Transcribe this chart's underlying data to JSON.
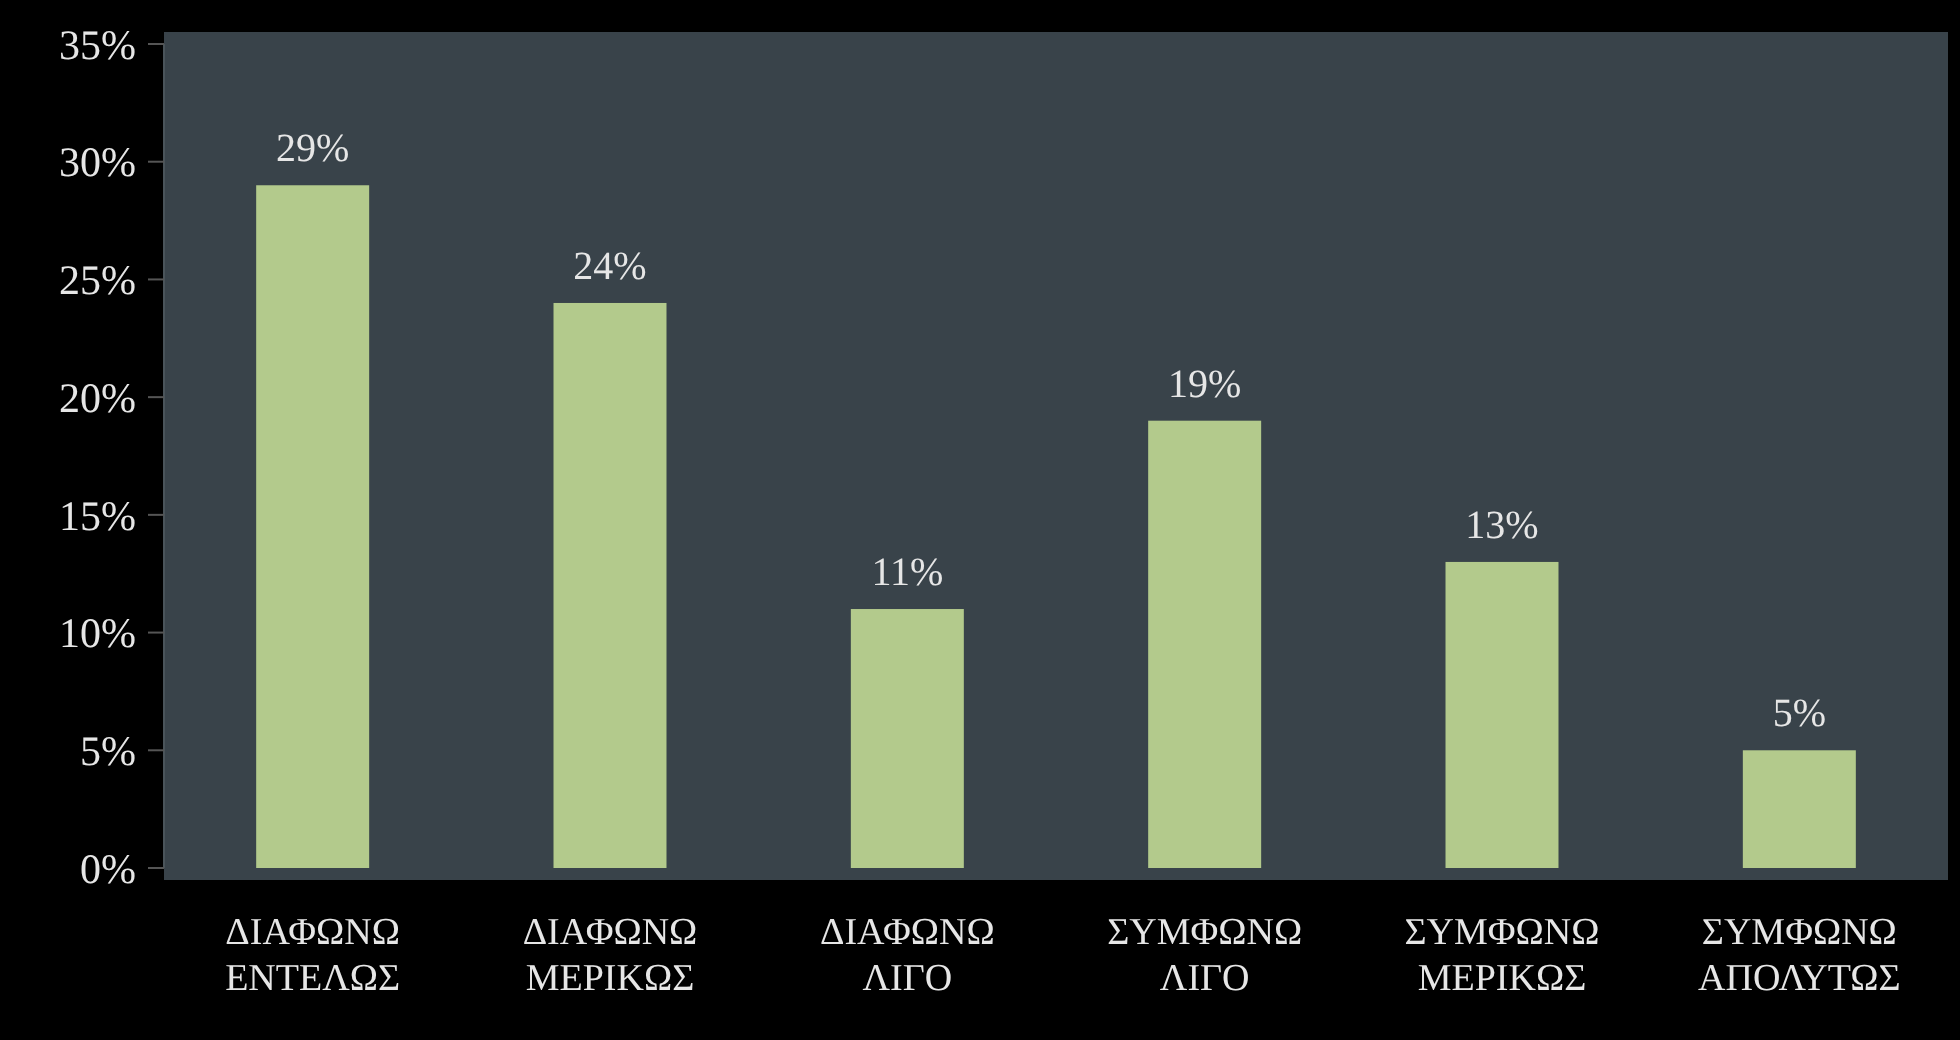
{
  "chart_data": {
    "type": "bar",
    "categories": [
      "ΔΙΑΦΩΝΩ ΕΝΤΕΛΩΣ",
      "ΔΙΑΦΩΝΩ ΜΕΡΙΚΩΣ",
      "ΔΙΑΦΩΝΩ ΛΙΓΟ",
      "ΣΥΜΦΩΝΩ ΛΙΓΟ",
      "ΣΥΜΦΩΝΩ ΜΕΡΙΚΩΣ",
      "ΣΥΜΦΩΝΩ ΑΠΟΛΥΤΩΣ"
    ],
    "values": [
      29,
      24,
      11,
      19,
      13,
      5
    ],
    "value_labels": [
      "29%",
      "24%",
      "11%",
      "19%",
      "13%",
      "5%"
    ],
    "color": "#b3ca8c",
    "ylim": [
      0,
      35
    ],
    "yticks": [
      {
        "value": 0,
        "label": "0%"
      },
      {
        "value": 5,
        "label": "5%"
      },
      {
        "value": 10,
        "label": "10%"
      },
      {
        "value": 15,
        "label": "15%"
      },
      {
        "value": 20,
        "label": "20%"
      },
      {
        "value": 25,
        "label": "25%"
      },
      {
        "value": 30,
        "label": "30%"
      },
      {
        "value": 35,
        "label": "35%"
      }
    ]
  }
}
